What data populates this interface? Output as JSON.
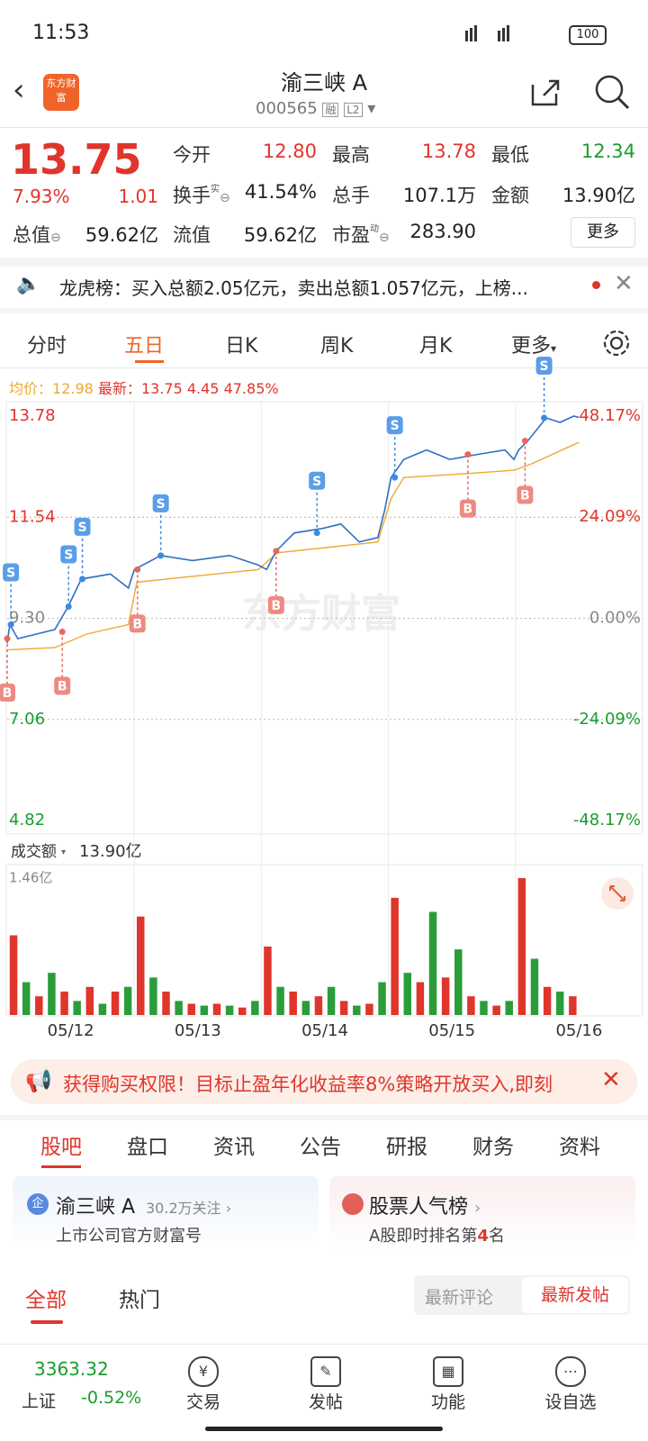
{
  "status": {
    "time": "11:53",
    "battery": "100"
  },
  "header": {
    "title": "渝三峡 A",
    "code": "000565",
    "tags": [
      "融",
      "L2"
    ],
    "logo": "东方财富"
  },
  "quote": {
    "price": "13.75",
    "change_pct": "7.93%",
    "change": "1.01",
    "fields": [
      {
        "label": "今开",
        "value": "12.80"
      },
      {
        "label": "最高",
        "value": "13.78"
      },
      {
        "label": "最低",
        "value": "12.34"
      },
      {
        "label": "换手",
        "sup": "实",
        "value": "41.54%"
      },
      {
        "label": "总手",
        "value": "107.1万"
      },
      {
        "label": "金额",
        "value": "13.90亿"
      },
      {
        "label": "总值",
        "value": "59.62亿"
      },
      {
        "label": "流值",
        "value": "59.62亿"
      },
      {
        "label": "市盈",
        "sup": "动",
        "value": "283.90"
      }
    ],
    "more": "更多"
  },
  "notice": "龙虎榜：买入总额2.05亿元，卖出总额1.057亿元，上榜...",
  "chart_tabs": [
    "分时",
    "五日",
    "日K",
    "周K",
    "月K",
    "更多"
  ],
  "chart": {
    "type": "line",
    "avg_label": "均价：",
    "avg": "12.98",
    "latest_label": "最新：",
    "latest": "13.75",
    "latest_change": "4.45",
    "latest_pct": "47.85%",
    "watermark": "东方财富",
    "xlim": [
      0,
      1200
    ],
    "ylim": [
      4.82,
      13.78
    ],
    "yticks": [
      13.78,
      11.54,
      {
        "value": 9.3,
        "label": "9.30"
      },
      7.06,
      4.82
    ],
    "y2lim": [
      -48.17,
      48.17
    ],
    "y2ticks": [
      {
        "value": 48.17,
        "label": "48.17%"
      },
      {
        "value": 24.09,
        "label": "24.09%"
      },
      {
        "value": 0,
        "label": "0.00%"
      },
      {
        "value": -24.09,
        "label": "-24.09%"
      },
      {
        "value": -48.17,
        "label": "-48.17%"
      }
    ],
    "dates": [
      "05/12",
      "05/13",
      "05/14",
      "05/15",
      "05/16"
    ],
    "price_line": {
      "color": "#2f6fc4",
      "x": [
        0,
        5,
        20,
        90,
        115,
        140,
        195,
        229,
        240,
        290,
        350,
        420,
        474,
        490,
        508,
        542,
        595,
        630,
        665,
        700,
        713,
        725,
        749,
        792,
        836,
        888,
        940,
        957,
        966,
        983,
        1018,
        1044,
        1070,
        1080
      ],
      "values": [
        8.75,
        9.16,
        8.85,
        9.05,
        9.56,
        10.17,
        10.28,
        9.97,
        10.38,
        10.69,
        10.58,
        10.69,
        10.48,
        10.38,
        10.79,
        11.19,
        11.29,
        11.39,
        10.99,
        11.09,
        11.7,
        12.42,
        12.82,
        13.03,
        12.82,
        12.93,
        13.03,
        12.82,
        13.03,
        13.23,
        13.74,
        13.64,
        13.78,
        13.75
      ]
    },
    "avg_line": {
      "color": "#f0a830",
      "x": [
        0,
        90,
        150,
        229,
        245,
        474,
        510,
        700,
        725,
        749,
        888,
        957,
        990,
        1080
      ],
      "values": [
        8.6,
        8.65,
        8.95,
        9.16,
        10.1,
        10.38,
        10.75,
        10.99,
        11.95,
        12.42,
        12.52,
        12.58,
        12.72,
        13.2
      ]
    },
    "markers": [
      {
        "label": "B",
        "x": 0,
        "price": 8.85
      },
      {
        "label": "S",
        "x": 7,
        "price": 9.16
      },
      {
        "label": "B",
        "x": 104,
        "price": 9.0
      },
      {
        "label": "S",
        "x": 116,
        "price": 9.56
      },
      {
        "label": "S",
        "x": 142,
        "price": 10.17
      },
      {
        "label": "B",
        "x": 246,
        "price": 10.38
      },
      {
        "label": "S",
        "x": 290,
        "price": 10.69
      },
      {
        "label": "B",
        "x": 508,
        "price": 10.79
      },
      {
        "label": "S",
        "x": 585,
        "price": 11.19
      },
      {
        "label": "S",
        "x": 732,
        "price": 12.42
      },
      {
        "label": "B",
        "x": 870,
        "price": 12.93
      },
      {
        "label": "B",
        "x": 978,
        "price": 13.23
      },
      {
        "label": "S",
        "x": 1014,
        "price": 13.74
      }
    ],
    "volume_label": "成交额",
    "volume_total": "13.90亿",
    "volume": {
      "color": "#e0352b",
      "alt_color": "#2a9d3a",
      "bucket": 24,
      "vlim": [
        0,
        1.46
      ],
      "vticks": [
        {
          "value": 1.46,
          "label": "1.46亿"
        }
      ],
      "values": [
        0.85,
        0.35,
        0.2,
        0.45,
        0.25,
        0.15,
        0.3,
        0.12,
        0.25,
        0.3,
        1.05,
        0.4,
        0.25,
        0.15,
        0.12,
        0.1,
        0.12,
        0.1,
        0.08,
        0.15,
        0.73,
        0.3,
        0.25,
        0.15,
        0.2,
        0.3,
        0.15,
        0.1,
        0.12,
        0.35,
        1.25,
        0.45,
        0.35,
        1.1,
        0.4,
        0.7,
        0.2,
        0.15,
        0.1,
        0.15,
        1.46,
        0.6,
        0.3,
        0.25,
        0.2
      ]
    }
  },
  "ad": "获得购买权限！目标止盈年化收益率8%策略开放买入,即刻",
  "section_tabs": [
    "股吧",
    "盘口",
    "资讯",
    "公告",
    "研报",
    "财务",
    "资料"
  ],
  "cards": {
    "company": {
      "icon": "企",
      "name": "渝三峡 A",
      "follow": "30.2万关注",
      "sub": "上市公司官方财富号"
    },
    "rank": {
      "title": "股票人气榜",
      "sub_prefix": "A股即时排名第",
      "rank": "4",
      "sub_suffix": "名"
    }
  },
  "filters": [
    "全部",
    "热门"
  ],
  "sorts": [
    "最新评论",
    "最新发帖"
  ],
  "bottom": {
    "index_value": "3363.32",
    "index_name": "上证",
    "index_pct": "-0.52%",
    "nav": [
      "交易",
      "发帖",
      "功能",
      "设自选"
    ]
  }
}
